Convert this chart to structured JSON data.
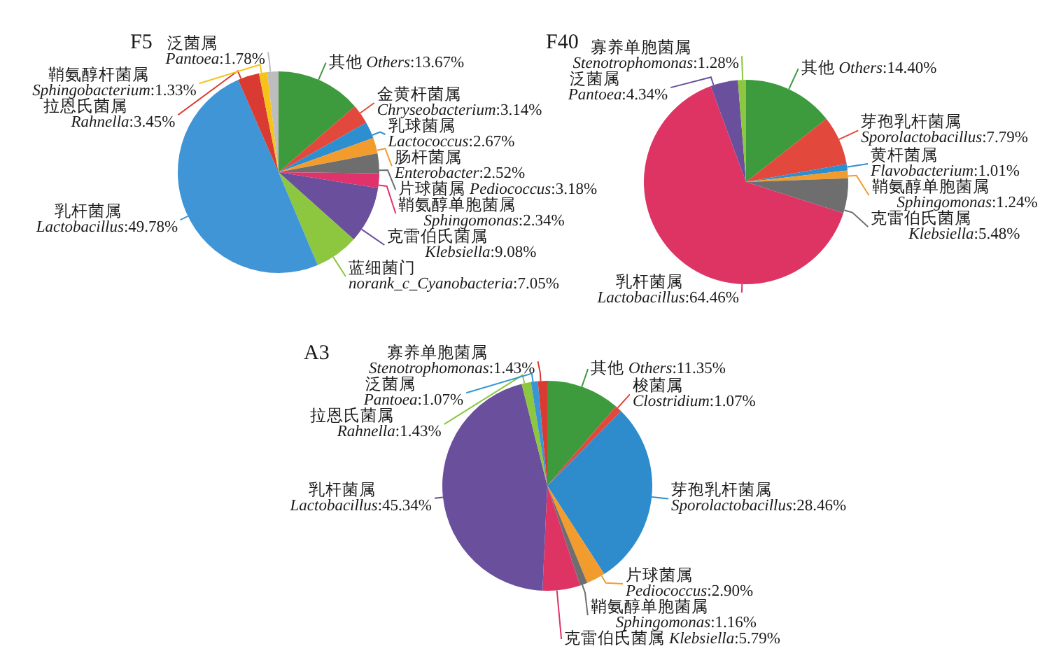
{
  "chart_data": [
    {
      "type": "pie",
      "title": "F5",
      "categories": [
        "其他 Others",
        "金黄杆菌属\nChryseobacterium",
        "乳球菌属\nLactococcus",
        "肠杆菌属\nEnterobacter",
        "片球菌属 Pediococcus",
        "鞘氨醇单胞菌属\nSphingomonas",
        "克雷伯氏菌属\nKlebsiella",
        "蓝细菌门\nnorank_c_Cyanobacteria",
        "乳杆菌属\nLactobacillus",
        "拉恩氏菌属\nRahnella",
        "鞘氨醇杆菌属\nSphingobacterium",
        "泛菌属\nPantoea"
      ],
      "values": [
        13.67,
        3.14,
        2.67,
        2.52,
        3.18,
        2.34,
        9.08,
        7.05,
        49.78,
        3.45,
        1.33,
        1.78
      ],
      "value_labels": [
        ":13.67%",
        ":3.14%",
        ":2.67%",
        ":2.52%",
        ":3.18%",
        ":2.34%",
        ":9.08%",
        ":7.05%",
        ":49.78%",
        ":3.45%",
        ":1.33%",
        ":1.78%"
      ],
      "colors": [
        "#3d9a3d",
        "#e2493c",
        "#2e8fd0",
        "#f39c2e",
        "#6e6e6e",
        "#e0336b",
        "#694f9c",
        "#8dc63f",
        "#3f95d6",
        "#d93a32",
        "#f7c31a",
        "#bdbdbd"
      ]
    },
    {
      "type": "pie",
      "title": "F40",
      "categories": [
        "其他 Others",
        "芽孢乳杆菌属\nSporolactobacillus",
        "黄杆菌属\nFlavobacterium",
        "鞘氨醇单胞菌属\nSphingomonas",
        "克雷伯氏菌属\nKlebsiella",
        "乳杆菌属\nLactobacillus",
        "泛菌属\nPantoea",
        "寡养单胞菌属\nStenotrophomonas"
      ],
      "values": [
        14.4,
        7.79,
        1.01,
        1.24,
        5.48,
        64.46,
        4.34,
        1.28
      ],
      "value_labels": [
        ":14.40%",
        ":7.79%",
        ":1.01%",
        ":1.24%",
        ":5.48%",
        ":64.46%",
        ":4.34%",
        ":1.28%"
      ],
      "colors": [
        "#3d9a3d",
        "#e2493c",
        "#2e8fd0",
        "#f39c2e",
        "#6e6e6e",
        "#dd3464",
        "#694f9c",
        "#8dc63f"
      ]
    },
    {
      "type": "pie",
      "title": "A3",
      "categories": [
        "其他 Others",
        "梭菌属\nClostridium",
        "芽孢乳杆菌属\nSporolactobacillus",
        "片球菌属\nPediococcus",
        "鞘氨醇单胞菌属\nSphingomonas",
        "克雷伯氏菌属 Klebsiella",
        "乳杆菌属\nLactobacillus",
        "拉恩氏菌属\nRahnella",
        "泛菌属\nPantoea",
        "寡养单胞菌属\nStenotrophomonas"
      ],
      "values": [
        11.35,
        1.07,
        28.46,
        2.9,
        1.16,
        5.79,
        45.34,
        1.43,
        1.07,
        1.43
      ],
      "value_labels": [
        ":11.35%",
        ":1.07%",
        ":28.46%",
        ":2.90%",
        ":1.16%",
        ":5.79%",
        ":45.34%",
        ":1.43%",
        ":1.07%",
        ":1.43%"
      ],
      "colors": [
        "#3d9a3d",
        "#e2493c",
        "#2e8bcc",
        "#f39c2e",
        "#6e6e6e",
        "#dd3464",
        "#694f9c",
        "#8dc63f",
        "#3a95d5",
        "#d93a32"
      ]
    }
  ]
}
